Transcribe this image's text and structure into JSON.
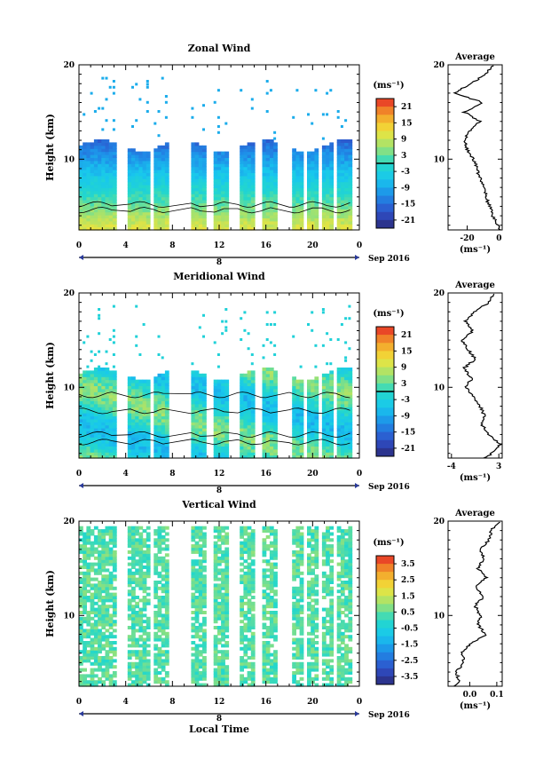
{
  "common": {
    "y_label": "Height (km)",
    "unit_label": "(ms⁻¹)",
    "avg_title": "Average",
    "date_label": "Sep 2016",
    "day_marker": "8",
    "local_time_label": "Local Time",
    "x_tick_labels": [
      "0",
      "4",
      "8",
      "12",
      "16",
      "20",
      "0"
    ],
    "y_tick_labels": [
      "20",
      "10"
    ]
  },
  "chart_data": [
    {
      "type": "heatmap",
      "title": "Zonal Wind",
      "ylabel": "Height (km)",
      "xlabel": "",
      "x_range_hours": [
        0,
        24
      ],
      "ylim_km": [
        2.5,
        20
      ],
      "colorbar": {
        "ticks": [
          "21",
          "15",
          "9",
          "3",
          "-3",
          "-9",
          "-15",
          "-21"
        ],
        "range": [
          -24,
          24
        ]
      },
      "average_profile": {
        "xlabel": "(ms⁻¹)",
        "x_ticks": [
          "-20",
          "0"
        ],
        "xlim": [
          -32,
          2
        ],
        "heights_km": [
          2.5,
          3,
          4,
          5,
          6,
          7,
          8,
          9,
          10,
          11,
          12,
          13,
          14,
          15,
          16,
          17,
          18,
          19,
          20
        ],
        "values": [
          1,
          -1,
          -4,
          -6,
          -8,
          -10,
          -12,
          -14,
          -16,
          -20,
          -22,
          -18,
          -12,
          -22,
          -10,
          -28,
          -18,
          -8,
          -4
        ]
      }
    },
    {
      "type": "heatmap",
      "title": "Meridional Wind",
      "ylabel": "Height (km)",
      "xlabel": "",
      "x_range_hours": [
        0,
        24
      ],
      "ylim_km": [
        2.5,
        20
      ],
      "colorbar": {
        "ticks": [
          "21",
          "15",
          "9",
          "3",
          "-3",
          "-9",
          "-15",
          "-21"
        ],
        "range": [
          -24,
          24
        ]
      },
      "average_profile": {
        "xlabel": "(ms⁻¹)",
        "x_ticks": [
          "-4",
          "3"
        ],
        "xlim": [
          -4.5,
          3.5
        ],
        "heights_km": [
          2.5,
          3,
          4,
          5,
          6,
          7,
          8,
          9,
          10,
          11,
          12,
          13,
          14,
          15,
          16,
          17,
          18,
          19,
          20
        ],
        "values": [
          0.8,
          2.0,
          3.2,
          1.5,
          0.5,
          0.9,
          0.2,
          -0.8,
          -1.8,
          -1.0,
          -2.2,
          -0.5,
          -1.5,
          -2.5,
          -0.8,
          -2.0,
          -0.5,
          1.5,
          2.5
        ]
      }
    },
    {
      "type": "heatmap",
      "title": "Vertical Wind",
      "ylabel": "Height (km)",
      "xlabel": "Local Time",
      "x_range_hours": [
        0,
        24
      ],
      "ylim_km": [
        2.5,
        20
      ],
      "colorbar": {
        "ticks": [
          "3.5",
          "2.5",
          "1.5",
          "0.5",
          "-0.5",
          "-1.5",
          "-2.5",
          "-3.5"
        ],
        "range": [
          -4,
          4
        ]
      },
      "average_profile": {
        "xlabel": "(ms⁻¹)",
        "x_ticks": [
          "0.0",
          "0.1"
        ],
        "xlim": [
          -0.08,
          0.12
        ],
        "heights_km": [
          2.5,
          3,
          4,
          5,
          6,
          7,
          8,
          9,
          10,
          11,
          12,
          13,
          14,
          15,
          16,
          17,
          18,
          19,
          20
        ],
        "values": [
          -0.06,
          -0.04,
          -0.05,
          -0.02,
          -0.03,
          0.0,
          0.06,
          0.03,
          0.04,
          0.02,
          0.05,
          0.02,
          0.06,
          0.03,
          0.05,
          0.04,
          0.07,
          0.08,
          0.11
        ]
      }
    }
  ]
}
